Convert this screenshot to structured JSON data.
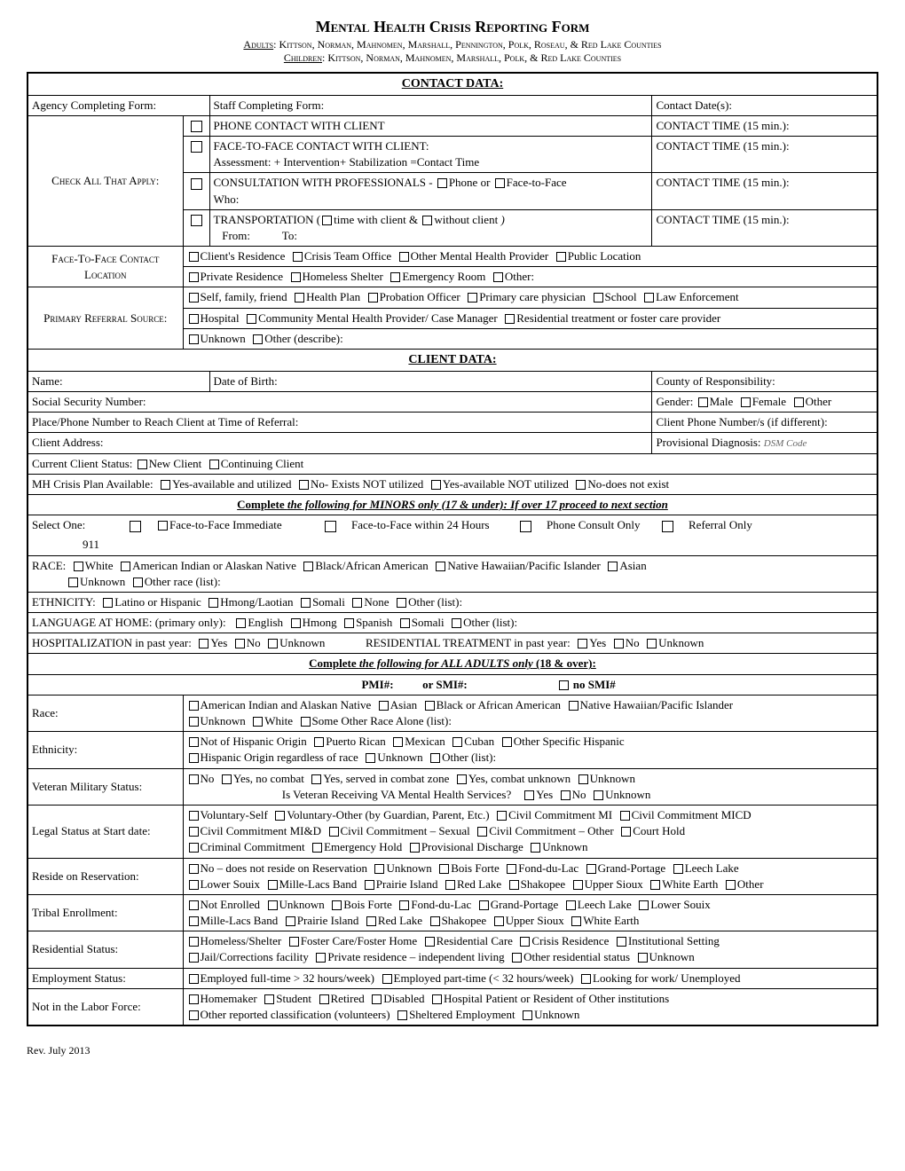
{
  "header": {
    "title": "Mental Health Crisis Reporting Form",
    "adults_label": "Adults",
    "adults_counties": ": Kittson, Norman, Mahnomen, Marshall, Pennington, Polk, Roseau, & Red Lake Counties",
    "children_label": "Children",
    "children_counties": ": Kittson, Norman, Mahnomen, Marshall, Polk, & Red Lake Counties"
  },
  "contact": {
    "section": "CONTACT DATA:",
    "agency": "Agency Completing Form:",
    "staff": "Staff Completing Form:",
    "date": "Contact Date(s):",
    "check_all": "Check All That Apply:",
    "phone_contact": "PHONE CONTACT WITH CLIENT",
    "f2f_contact": "FACE-TO-FACE CONTACT WITH CLIENT:",
    "f2f_formula": "Assessment: + Intervention+ Stabilization =Contact Time",
    "consult": "CONSULTATION WITH PROFESSIONALS - ",
    "consult_phone": "Phone or ",
    "consult_f2f": "Face-to-Face",
    "who": "Who:",
    "transport": "TRANSPORTATION (",
    "transport_time": "time with client  & ",
    "transport_without": "without client",
    "transport_end": " )",
    "from": "From:",
    "to": "To:",
    "contact_time": "CONTACT TIME (15 min.):",
    "f2f_location": "Face-To-Face Contact Location",
    "loc_opts1": [
      "Client's Residence",
      "Crisis Team Office",
      "Other Mental Health Provider",
      "Public Location"
    ],
    "loc_opts2": [
      "Private Residence",
      "Homeless Shelter",
      "Emergency Room",
      "Other:"
    ],
    "referral": "Primary Referral Source:",
    "ref_opts1": [
      "Self, family, friend",
      "Health Plan",
      "Probation Officer",
      "Primary care physician",
      "School",
      "Law Enforcement"
    ],
    "ref_opts2": [
      "Hospital",
      "Community Mental Health Provider/ Case Manager",
      "Residential treatment or foster care provider"
    ],
    "ref_opts3": [
      "Unknown",
      "Other (describe):"
    ]
  },
  "client": {
    "section": "CLIENT DATA:",
    "name": "Name:",
    "dob": "Date of Birth:",
    "county": "County of Responsibility:",
    "ssn": "Social Security Number:",
    "gender": "Gender:",
    "gender_opts": [
      "Male",
      "Female",
      "Other"
    ],
    "place_phone": "Place/Phone Number to Reach Client at Time of Referral:",
    "client_phone": "Client Phone Number/s (if different):",
    "address": "Client Address:",
    "prov_diag": "Provisional Diagnosis:",
    "dsm": "DSM Code",
    "status": "Current Client Status:",
    "status_opts": [
      "New Client",
      "Continuing Client"
    ],
    "crisis_plan": "MH Crisis Plan Available:",
    "crisis_opts": [
      "Yes-available and utilized",
      "No- Exists NOT utilized",
      "Yes-available NOT utilized",
      "No-does not exist"
    ]
  },
  "minors": {
    "section_pre": "Complete ",
    "section_mid": "the following for MINORS only (17 & under): If over 17 proceed to next section",
    "select_one": "Select One:",
    "nine11": "911",
    "opts": [
      "Face-to-Face Immediate",
      "Face-to-Face within 24 Hours",
      "Phone Consult Only",
      "Referral Only"
    ],
    "race": "RACE:",
    "race_opts1": [
      "White",
      "American Indian or Alaskan Native",
      "Black/African American",
      "Native Hawaiian/Pacific Islander",
      "Asian"
    ],
    "race_opts2": [
      "Unknown",
      "Other race (list):"
    ],
    "ethnicity": "ETHNICITY:",
    "eth_opts": [
      "Latino or Hispanic",
      "Hmong/Laotian",
      "Somali",
      "None",
      "Other (list):"
    ],
    "language": "LANGUAGE AT HOME: (primary only):",
    "lang_opts": [
      "English",
      "Hmong",
      "Spanish",
      "Somali",
      "Other (list):"
    ],
    "hosp": "HOSPITALIZATION in past year:",
    "hosp_opts": [
      "Yes",
      "No",
      "Unknown"
    ],
    "res_treat": "RESIDENTIAL TREATMENT  in past year:",
    "res_opts": [
      "Yes",
      "No",
      "Unknown"
    ]
  },
  "adults": {
    "section_pre": "Complete ",
    "section_mid": "the following for ALL ADULTS only",
    "section_post": " (18 & over):",
    "pmi": "PMI#:",
    "or_smi": "or SMI#:",
    "no_smi": "no SMI#",
    "race": "Race:",
    "race_opts1": [
      "American Indian and Alaskan Native",
      "Asian",
      "Black or African American",
      "Native Hawaiian/Pacific Islander"
    ],
    "race_opts2": [
      "Unknown",
      "White",
      "Some Other Race Alone (list):"
    ],
    "ethnicity": "Ethnicity:",
    "eth_opts1": [
      "Not of Hispanic Origin",
      "Puerto Rican",
      "Mexican",
      "Cuban",
      "Other Specific Hispanic"
    ],
    "eth_opts2": [
      "Hispanic Origin regardless of race",
      "Unknown",
      "Other (list):"
    ],
    "veteran": "Veteran Military Status:",
    "vet_opts": [
      "No",
      "Yes, no combat",
      "Yes, served in combat zone",
      "Yes, combat unknown",
      "Unknown"
    ],
    "va_q": "Is Veteran Receiving VA Mental Health Services?",
    "va_opts": [
      "Yes",
      "No",
      "Unknown"
    ],
    "legal": "Legal Status at Start date:",
    "legal_opts1": [
      "Voluntary-Self",
      "Voluntary-Other (by Guardian, Parent, Etc.)",
      "Civil Commitment MI",
      "Civil Commitment MICD"
    ],
    "legal_opts2": [
      "Civil Commitment MI&D",
      "Civil Commitment – Sexual",
      "Civil Commitment – Other",
      "Court Hold"
    ],
    "legal_opts3": [
      "Criminal Commitment",
      "Emergency Hold",
      "Provisional Discharge",
      "Unknown"
    ],
    "reservation": "Reside on Reservation:",
    "res_opts1": [
      "No – does not reside on Reservation",
      "Unknown",
      "Bois Forte",
      "Fond-du-Lac",
      "Grand-Portage",
      "Leech Lake"
    ],
    "res_opts2": [
      "Lower Souix",
      "Mille-Lacs Band",
      "Prairie Island",
      "Red Lake",
      "Shakopee",
      "Upper Sioux",
      "White Earth",
      "Other"
    ],
    "tribal": "Tribal Enrollment:",
    "tribal_opts1": [
      "Not Enrolled",
      "Unknown",
      "Bois Forte",
      "Fond-du-Lac",
      "Grand-Portage",
      "Leech Lake",
      "Lower Souix"
    ],
    "tribal_opts2": [
      "Mille-Lacs Band",
      "Prairie Island",
      "Red Lake",
      "Shakopee",
      "Upper Sioux",
      "White Earth"
    ],
    "residential": "Residential Status:",
    "resid_opts1": [
      "Homeless/Shelter",
      "Foster Care/Foster Home",
      "Residential Care",
      "Crisis Residence",
      "Institutional Setting"
    ],
    "resid_opts2": [
      "Jail/Corrections facility",
      "Private residence – independent living",
      "Other residential status",
      "Unknown"
    ],
    "employment": "Employment Status:",
    "emp_opts": [
      "Employed full-time > 32 hours/week)",
      "Employed part-time (< 32 hours/week)",
      "Looking for work/ Unemployed"
    ],
    "not_labor": "Not in the Labor Force:",
    "labor_opts1": [
      "Homemaker",
      "Student",
      "Retired",
      "Disabled",
      "Hospital Patient or Resident of Other institutions"
    ],
    "labor_opts2": [
      "Other reported classification (volunteers)",
      "Sheltered Employment",
      "Unknown"
    ]
  },
  "footer": "Rev. July 2013"
}
